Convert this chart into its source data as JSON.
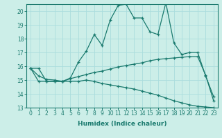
{
  "xlabel": "Humidex (Indice chaleur)",
  "color": "#1a7a6e",
  "bg_color": "#cceee8",
  "grid_color": "#aadddd",
  "ylim": [
    13,
    20.5
  ],
  "xlim": [
    -0.5,
    23.5
  ],
  "yticks": [
    13,
    14,
    15,
    16,
    17,
    18,
    19,
    20
  ],
  "xticks": [
    0,
    1,
    2,
    3,
    4,
    5,
    6,
    7,
    8,
    9,
    10,
    11,
    12,
    13,
    14,
    15,
    16,
    17,
    18,
    19,
    20,
    21,
    22,
    23
  ],
  "line1_x": [
    0,
    1,
    2,
    3,
    4,
    5,
    6,
    7,
    8,
    9,
    10,
    11,
    12,
    13,
    14,
    15,
    16,
    17,
    18,
    19,
    20,
    21,
    22,
    23
  ],
  "line1_y": [
    15.85,
    15.85,
    14.9,
    14.9,
    14.9,
    15.15,
    16.3,
    17.1,
    18.3,
    17.5,
    19.35,
    20.4,
    20.5,
    19.5,
    19.5,
    18.5,
    18.3,
    20.6,
    17.7,
    16.85,
    17.0,
    17.0,
    15.3,
    13.8
  ],
  "line2_x": [
    0,
    1,
    2,
    3,
    4,
    5,
    6,
    7,
    8,
    9,
    10,
    11,
    12,
    13,
    14,
    15,
    16,
    17,
    18,
    19,
    20,
    21,
    22,
    23
  ],
  "line2_y": [
    15.85,
    14.9,
    14.9,
    14.9,
    14.9,
    14.9,
    14.9,
    15.0,
    14.9,
    14.75,
    14.65,
    14.55,
    14.45,
    14.35,
    14.2,
    14.05,
    13.9,
    13.7,
    13.5,
    13.35,
    13.2,
    13.1,
    13.05,
    13.0
  ],
  "line3_x": [
    0,
    1,
    2,
    3,
    4,
    5,
    6,
    7,
    8,
    9,
    10,
    11,
    12,
    13,
    14,
    15,
    16,
    17,
    18,
    19,
    20,
    21,
    22,
    23
  ],
  "line3_y": [
    15.85,
    15.3,
    15.05,
    15.0,
    14.9,
    15.1,
    15.25,
    15.4,
    15.55,
    15.65,
    15.8,
    15.95,
    16.05,
    16.15,
    16.25,
    16.4,
    16.5,
    16.55,
    16.6,
    16.65,
    16.7,
    16.7,
    15.35,
    13.5
  ]
}
